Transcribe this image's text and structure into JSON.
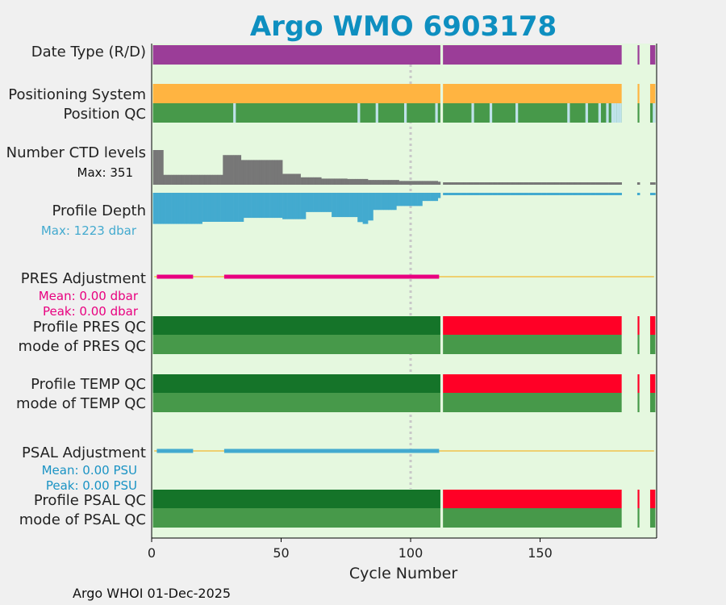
{
  "chart_data": {
    "type": "bar",
    "title": "Argo WMO 6903178",
    "xlabel": "Cycle Number",
    "xlim": [
      0,
      195
    ],
    "xticks": [
      0,
      50,
      100,
      150
    ],
    "grid": false,
    "reference_line_cycle": 100,
    "cycle_segments": [
      [
        1,
        111
      ],
      [
        113,
        181
      ],
      [
        188,
        188
      ],
      [
        193,
        194
      ]
    ],
    "rows": [
      {
        "id": "date-type",
        "label": "Date Type (R/D)",
        "color": "#9b3d98"
      },
      {
        "id": "positioning-system",
        "label": "Positioning System",
        "color": "#ffb441"
      },
      {
        "id": "position-qc",
        "label": "Position QC",
        "color": "#47994a",
        "gap_color": "#bfe2ea",
        "gap_cycles": [
          32,
          80,
          87,
          98,
          110,
          124,
          131,
          141,
          161,
          168,
          173,
          176,
          178,
          179,
          180,
          181,
          194
        ]
      },
      {
        "id": "ctd-levels",
        "label": "Number CTD levels",
        "max_label": "Max: 351",
        "max": 351,
        "color": "#777777",
        "profile": [
          [
            1,
            351
          ],
          [
            5,
            100
          ],
          [
            28,
            300
          ],
          [
            35,
            250
          ],
          [
            51,
            110
          ],
          [
            58,
            75
          ],
          [
            66,
            62
          ],
          [
            76,
            58
          ],
          [
            84,
            48
          ],
          [
            96,
            38
          ],
          [
            111,
            30
          ],
          [
            113,
            20
          ]
        ]
      },
      {
        "id": "profile-depth",
        "label": "Profile Depth",
        "max_label": "Max: 1223 dbar",
        "max": 1223,
        "color": "#43aacf",
        "profile": [
          [
            1,
            1180
          ],
          [
            20,
            1100
          ],
          [
            36,
            950
          ],
          [
            51,
            1000
          ],
          [
            60,
            730
          ],
          [
            70,
            920
          ],
          [
            80,
            1110
          ],
          [
            82,
            1180
          ],
          [
            84,
            1050
          ],
          [
            86,
            650
          ],
          [
            95,
            500
          ],
          [
            105,
            310
          ],
          [
            111,
            200
          ],
          [
            113,
            80
          ]
        ]
      },
      {
        "id": "pres-adjustment",
        "label": "PRES Adjustment",
        "mean_label": "Mean: 0.00 dbar",
        "peak_label": "Peak: 0.00 dbar",
        "color": "#e8007f",
        "zero_line_color": "#f2c34b",
        "adjusted_cycles": [
          [
            2,
            16
          ],
          [
            28,
            111
          ]
        ]
      },
      {
        "id": "profile-pres-qc",
        "label": "Profile PRES QC",
        "color_a": "#157429",
        "color_b": "#ff0026",
        "switch_cycle": 113
      },
      {
        "id": "mode-pres-qc",
        "label": "mode of PRES QC",
        "color": "#47994a"
      },
      {
        "id": "profile-temp-qc",
        "label": "Profile TEMP QC",
        "color_a": "#157429",
        "color_b": "#ff0026",
        "switch_cycle": 113
      },
      {
        "id": "mode-temp-qc",
        "label": "mode of TEMP QC",
        "color": "#47994a"
      },
      {
        "id": "psal-adjustment",
        "label": "PSAL Adjustment",
        "mean_label": "Mean: 0.00 PSU",
        "peak_label": "Peak: 0.00 PSU",
        "color": "#43aacf",
        "zero_line_color": "#f2c34b",
        "adjusted_cycles": [
          [
            2,
            16
          ],
          [
            28,
            111
          ]
        ]
      },
      {
        "id": "profile-psal-qc",
        "label": "Profile PSAL QC",
        "color_a": "#157429",
        "color_b": "#ff0026",
        "switch_cycle": 113
      },
      {
        "id": "mode-psal-qc",
        "label": "mode of PSAL QC",
        "color": "#47994a"
      }
    ]
  },
  "footer": "Argo WHOI 01-Dec-2025",
  "colors": {
    "plot_background": "#e5f8df",
    "figure_background": "#f0f0f0",
    "title": "#0e8fc0",
    "reference_line": "#c8c8c8",
    "axis": "#000000"
  }
}
